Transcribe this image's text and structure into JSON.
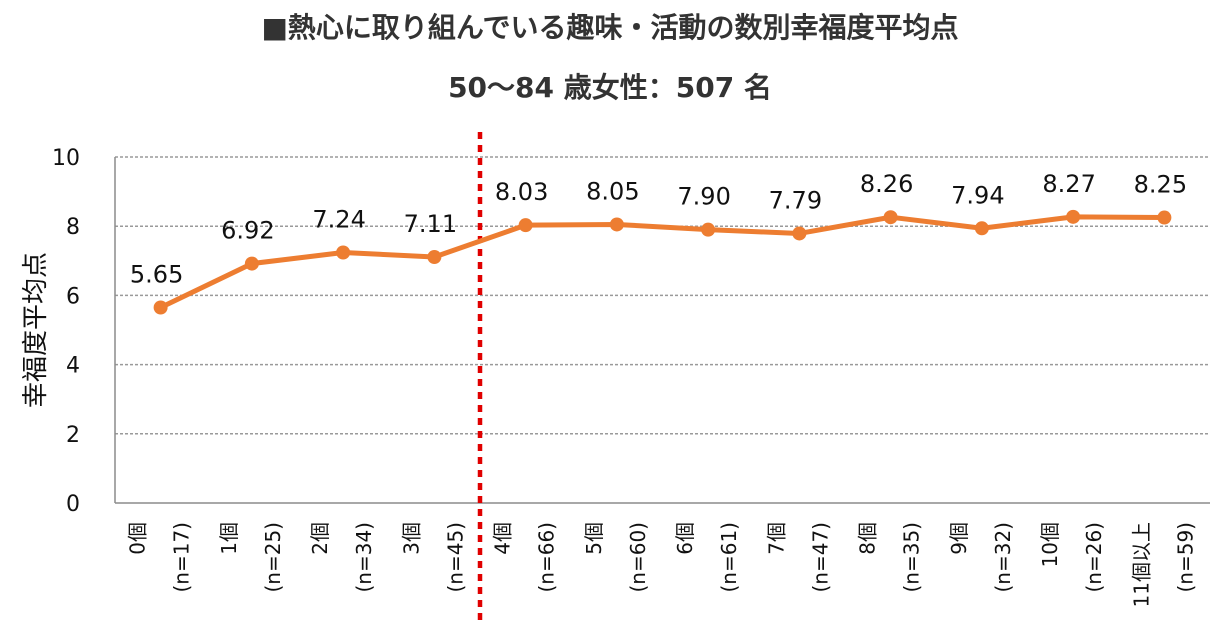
{
  "title": "■熱心に取り組んでいる趣味・活動の数別幸福度平均点",
  "subtitle": "50～84 歳女性：507 名",
  "chart_data": {
    "type": "line",
    "ylabel": "幸福度平均点",
    "ylim": [
      0,
      10
    ],
    "yticks": [
      "0",
      "2",
      "4",
      "6",
      "8",
      "10"
    ],
    "grid": true,
    "line_color": "#ED7D31",
    "divider_color": "#E00000",
    "divider_after_index": 3,
    "categories": [
      {
        "name": "0個",
        "n": "(n=17)"
      },
      {
        "name": "1個",
        "n": "(n=25)"
      },
      {
        "name": "2個",
        "n": "(n=34)"
      },
      {
        "name": "3個",
        "n": "(n=45)"
      },
      {
        "name": "4個",
        "n": "(n=66)"
      },
      {
        "name": "5個",
        "n": "(n=60)"
      },
      {
        "name": "6個",
        "n": "(n=61)"
      },
      {
        "name": "7個",
        "n": "(n=47)"
      },
      {
        "name": "8個",
        "n": "(n=35)"
      },
      {
        "name": "9個",
        "n": "(n=32)"
      },
      {
        "name": "10個",
        "n": "(n=26)"
      },
      {
        "name": "11個以上",
        "n": "(n=59)"
      }
    ],
    "values": [
      5.65,
      6.92,
      7.24,
      7.11,
      8.03,
      8.05,
      7.9,
      7.79,
      8.26,
      7.94,
      8.27,
      8.25
    ],
    "value_labels": [
      "5.65",
      "6.92",
      "7.24",
      "7.11",
      "8.03",
      "8.05",
      "7.90",
      "7.79",
      "8.26",
      "7.94",
      "8.27",
      "8.25"
    ]
  }
}
